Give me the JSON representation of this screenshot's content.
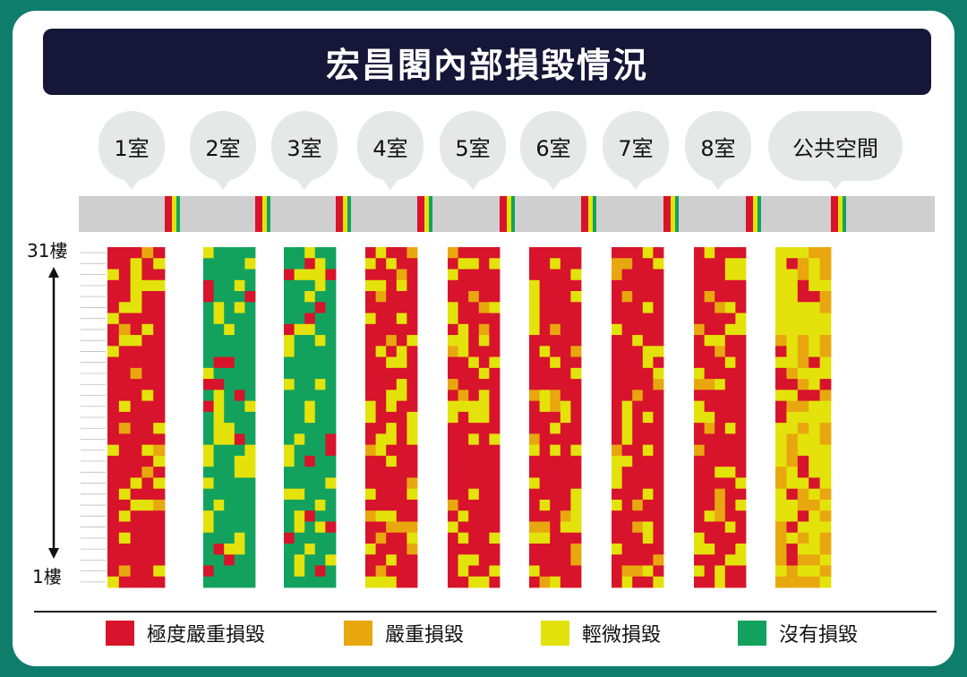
{
  "title": "宏昌閣內部損毀情況",
  "rooms": [
    "1室",
    "2室",
    "3室",
    "4室",
    "5室",
    "6室",
    "7室",
    "8室",
    "公共空間"
  ],
  "axis": {
    "top": "31樓",
    "bottom": "1樓"
  },
  "legend": [
    {
      "label": "極度嚴重損毀",
      "color": "#d7142b"
    },
    {
      "label": "嚴重損毀",
      "color": "#e8a70f"
    },
    {
      "label": "輕微損毀",
      "color": "#e4e20b"
    },
    {
      "label": "沒有損毀",
      "color": "#13a25e"
    }
  ],
  "chart_data": {
    "type": "heatmap",
    "title": "宏昌閣內部損毀情況",
    "categories": [
      "1室",
      "2室",
      "3室",
      "4室",
      "5室",
      "6室",
      "7室",
      "8室",
      "公共空間"
    ],
    "y_range": [
      "1樓",
      "31樓"
    ],
    "levels": [
      "極度嚴重損毀",
      "嚴重損毀",
      "輕微損毀",
      "沒有損毀"
    ],
    "dominant_level_per_room": [
      "極度嚴重損毀",
      "沒有損毀",
      "沒有損毀",
      "極度嚴重損毀",
      "極度嚴重損毀",
      "極度嚴重損毀",
      "極度嚴重損毀",
      "極度嚴重損毀",
      "輕微損毀"
    ]
  }
}
